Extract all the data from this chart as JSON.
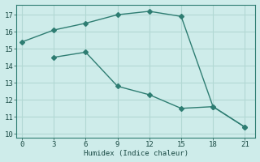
{
  "xlabel": "Humidex (Indice chaleur)",
  "bg_color": "#ceecea",
  "grid_color": "#b2d8d4",
  "line_color": "#2e7d72",
  "line1_x": [
    0,
    3,
    6,
    9,
    12,
    15,
    18,
    21
  ],
  "line1_y": [
    15.4,
    16.1,
    16.5,
    17.0,
    17.2,
    16.9,
    11.6,
    10.4
  ],
  "line2_x": [
    3,
    6,
    9,
    12,
    15,
    18,
    21
  ],
  "line2_y": [
    14.5,
    14.8,
    12.8,
    12.3,
    11.5,
    11.6,
    10.4
  ],
  "xlim": [
    -0.5,
    22
  ],
  "ylim": [
    9.8,
    17.6
  ],
  "xticks": [
    0,
    3,
    6,
    9,
    12,
    15,
    18,
    21
  ],
  "yticks": [
    10,
    11,
    12,
    13,
    14,
    15,
    16,
    17
  ],
  "markersize": 3,
  "linewidth": 1.0
}
